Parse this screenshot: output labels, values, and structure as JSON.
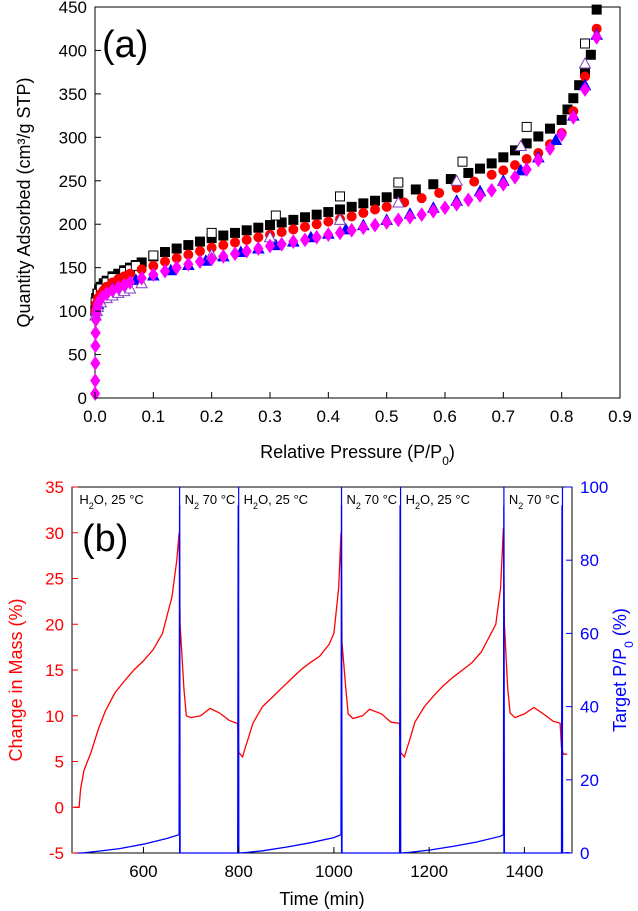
{
  "chart_data": [
    {
      "panel_label": "(a)",
      "type": "scatter",
      "xlabel": "Relative Pressure (P/P0)",
      "xlabel_parts": {
        "main": "Relative Pressure (P/P",
        "sub": "0",
        "end": ")"
      },
      "ylabel": "Quantity Adsorbed (cm³/g STP)",
      "xlim": [
        0.0,
        0.9
      ],
      "ylim": [
        0,
        450
      ],
      "xticks": [
        "0.0",
        "0.1",
        "0.2",
        "0.3",
        "0.4",
        "0.5",
        "0.6",
        "0.7",
        "0.8",
        "0.9"
      ],
      "yticks": [
        "0",
        "50",
        "100",
        "150",
        "200",
        "250",
        "300",
        "350",
        "400",
        "450"
      ],
      "grid": false,
      "series": [
        {
          "marker": "square-filled",
          "color": "#000000",
          "x": [
            0.0005,
            0.002,
            0.004,
            0.007,
            0.01,
            0.015,
            0.02,
            0.03,
            0.04,
            0.05,
            0.06,
            0.07,
            0.08,
            0.1,
            0.12,
            0.14,
            0.16,
            0.18,
            0.2,
            0.22,
            0.24,
            0.26,
            0.28,
            0.3,
            0.32,
            0.34,
            0.36,
            0.38,
            0.4,
            0.42,
            0.44,
            0.46,
            0.48,
            0.5,
            0.52,
            0.55,
            0.58,
            0.61,
            0.64,
            0.66,
            0.68,
            0.7,
            0.72,
            0.74,
            0.76,
            0.78,
            0.8,
            0.81,
            0.82,
            0.83,
            0.84,
            0.85,
            0.86
          ],
          "y": [
            100,
            115,
            120,
            125,
            128,
            132,
            135,
            140,
            143,
            147,
            150,
            153,
            156,
            163,
            168,
            172,
            176,
            180,
            184,
            187,
            190,
            193,
            196,
            199,
            202,
            205,
            208,
            211,
            214,
            217,
            220,
            224,
            227,
            231,
            235,
            240,
            246,
            252,
            259,
            264,
            270,
            277,
            285,
            293,
            301,
            310,
            320,
            332,
            345,
            360,
            375,
            395,
            447
          ]
        },
        {
          "marker": "square-open",
          "color": "#000000",
          "x": [
            0.001,
            0.005,
            0.01,
            0.02,
            0.03,
            0.05,
            0.06,
            0.07,
            0.1,
            0.2,
            0.31,
            0.42,
            0.52,
            0.63,
            0.74,
            0.84
          ],
          "y": [
            110,
            120,
            126,
            133,
            138,
            145,
            148,
            152,
            164,
            190,
            210,
            232,
            248,
            272,
            312,
            408
          ]
        },
        {
          "marker": "circle-filled",
          "color": "#ff0000",
          "x": [
            0.0005,
            0.002,
            0.005,
            0.01,
            0.015,
            0.02,
            0.03,
            0.04,
            0.05,
            0.06,
            0.08,
            0.1,
            0.12,
            0.14,
            0.16,
            0.18,
            0.2,
            0.22,
            0.24,
            0.26,
            0.28,
            0.3,
            0.32,
            0.34,
            0.36,
            0.38,
            0.4,
            0.42,
            0.44,
            0.46,
            0.48,
            0.5,
            0.53,
            0.56,
            0.59,
            0.62,
            0.65,
            0.68,
            0.7,
            0.72,
            0.74,
            0.76,
            0.78,
            0.8,
            0.82,
            0.84,
            0.86
          ],
          "y": [
            100,
            108,
            115,
            120,
            124,
            128,
            133,
            137,
            140,
            143,
            148,
            152,
            157,
            161,
            165,
            169,
            173,
            176,
            179,
            182,
            185,
            188,
            191,
            194,
            197,
            200,
            203,
            206,
            209,
            213,
            217,
            220,
            225,
            230,
            236,
            242,
            249,
            257,
            262,
            268,
            275,
            282,
            292,
            305,
            330,
            370,
            425
          ]
        },
        {
          "marker": "triangle-filled",
          "color": "#0000ff",
          "x": [
            0.001,
            0.005,
            0.01,
            0.02,
            0.03,
            0.05,
            0.07,
            0.1,
            0.13,
            0.16,
            0.19,
            0.22,
            0.25,
            0.28,
            0.31,
            0.34,
            0.37,
            0.4,
            0.43,
            0.46,
            0.5,
            0.54,
            0.58,
            0.62,
            0.66,
            0.7,
            0.73,
            0.76,
            0.79,
            0.82,
            0.84,
            0.86
          ],
          "y": [
            95,
            108,
            115,
            121,
            126,
            131,
            136,
            141,
            147,
            153,
            158,
            163,
            168,
            172,
            176,
            180,
            185,
            189,
            194,
            199,
            205,
            212,
            219,
            227,
            238,
            250,
            262,
            277,
            297,
            325,
            360,
            418
          ]
        },
        {
          "marker": "triangle-open",
          "color": "#8040c0",
          "x": [
            0.001,
            0.003,
            0.005,
            0.01,
            0.02,
            0.03,
            0.04,
            0.05,
            0.06,
            0.08,
            0.2,
            0.3,
            0.42,
            0.52,
            0.62,
            0.73,
            0.84
          ],
          "y": [
            95,
            100,
            105,
            110,
            115,
            118,
            121,
            123,
            126,
            132,
            165,
            185,
            205,
            225,
            250,
            290,
            385
          ]
        },
        {
          "marker": "diamond-filled",
          "color": "#ff00ff",
          "x": [
            0.0002,
            0.0004,
            0.0006,
            0.0008,
            0.001,
            0.0015,
            0.002,
            0.003,
            0.005,
            0.008,
            0.012,
            0.02,
            0.03,
            0.04,
            0.05,
            0.06,
            0.08,
            0.1,
            0.12,
            0.14,
            0.16,
            0.18,
            0.2,
            0.22,
            0.24,
            0.26,
            0.28,
            0.3,
            0.32,
            0.34,
            0.36,
            0.38,
            0.4,
            0.42,
            0.44,
            0.46,
            0.48,
            0.5,
            0.52,
            0.54,
            0.56,
            0.58,
            0.6,
            0.62,
            0.64,
            0.66,
            0.68,
            0.7,
            0.72,
            0.74,
            0.76,
            0.78,
            0.8,
            0.82,
            0.84,
            0.86
          ],
          "y": [
            5,
            20,
            40,
            60,
            75,
            90,
            97,
            103,
            108,
            112,
            116,
            120,
            124,
            127,
            130,
            133,
            138,
            142,
            146,
            150,
            154,
            157,
            160,
            163,
            166,
            169,
            172,
            175,
            177,
            180,
            182,
            185,
            188,
            190,
            193,
            196,
            199,
            202,
            205,
            208,
            211,
            215,
            219,
            223,
            228,
            233,
            239,
            246,
            254,
            263,
            274,
            287,
            303,
            323,
            355,
            415
          ]
        }
      ]
    },
    {
      "panel_label": "(b)",
      "type": "line",
      "xlabel": "Time (min)",
      "ylabel_left": "Change in Mass (%)",
      "ylabel_right": "Target P/P0 (%)",
      "ylabel_right_parts": {
        "main": "Target P/P",
        "sub": "0",
        "end": " (%)"
      },
      "xlim": [
        450,
        1500
      ],
      "ylim_left": [
        -5,
        35
      ],
      "ylim_right": [
        0,
        100
      ],
      "xticks": [
        "600",
        "800",
        "1000",
        "1200",
        "1400"
      ],
      "yticks_left": [
        "-5",
        "0",
        "5",
        "10",
        "15",
        "20",
        "25",
        "30",
        "35"
      ],
      "yticks_right": [
        "0",
        "20",
        "40",
        "60",
        "80",
        "100"
      ],
      "left_axis_color": "#ff0000",
      "right_axis_color": "#0000ff",
      "annotations": [
        {
          "parts": [
            "H",
            "2",
            "O, 25 °C"
          ],
          "x": 455
        },
        {
          "parts": [
            "N",
            "2",
            " 70 °C"
          ],
          "x": 676
        },
        {
          "parts": [
            "H",
            "2",
            "O, 25 °C"
          ],
          "x": 800
        },
        {
          "parts": [
            "N",
            "2",
            " 70 °C"
          ],
          "x": 1016
        },
        {
          "parts": [
            "H",
            "2",
            "O, 25 °C"
          ],
          "x": 1140
        },
        {
          "parts": [
            "N",
            "2",
            " 70 °C"
          ],
          "x": 1357
        }
      ],
      "boundaries": [
        676,
        800,
        1016,
        1140,
        1357,
        1480
      ],
      "series": [
        {
          "axis": "left",
          "color": "#ff0000",
          "x": [
            455,
            465,
            468,
            475,
            490,
            505,
            520,
            540,
            560,
            580,
            600,
            620,
            640,
            650,
            660,
            670,
            675,
            677,
            685,
            690,
            700,
            720,
            740,
            760,
            780,
            795,
            798,
            800,
            808,
            812,
            820,
            830,
            850,
            870,
            890,
            910,
            930,
            950,
            970,
            990,
            1000,
            1010,
            1015,
            1017,
            1025,
            1030,
            1040,
            1060,
            1075,
            1100,
            1120,
            1135,
            1138,
            1140,
            1148,
            1152,
            1160,
            1170,
            1190,
            1210,
            1230,
            1250,
            1270,
            1290,
            1310,
            1320,
            1340,
            1350,
            1356,
            1358,
            1365,
            1370,
            1380,
            1400,
            1420,
            1440,
            1460,
            1475,
            1478,
            1482,
            1490
          ],
          "y": [
            0,
            0,
            2,
            4,
            6,
            8.5,
            10.5,
            12.5,
            13.8,
            15,
            16,
            17.2,
            19,
            21,
            23,
            27,
            30,
            20,
            13,
            10,
            9.8,
            10,
            10.8,
            10.3,
            9.5,
            9.2,
            9.1,
            6,
            5.5,
            6.2,
            7.5,
            9.2,
            11,
            12,
            13,
            14,
            15,
            15.8,
            16.5,
            17.8,
            19,
            24,
            30,
            18,
            13,
            10.2,
            9.7,
            10,
            10.7,
            10.2,
            9.3,
            9.2,
            9.1,
            6,
            5.5,
            6.2,
            7.5,
            9.3,
            11,
            12.2,
            13.3,
            14.2,
            15,
            15.8,
            17,
            18,
            20,
            24,
            30.5,
            20,
            13,
            10.3,
            9.8,
            10.2,
            10.9,
            10.2,
            9.4,
            9.2,
            6.5,
            5.8,
            5.8
          ]
        },
        {
          "axis": "right",
          "color": "#0000ff",
          "x": [
            455,
            470,
            500,
            550,
            600,
            650,
            675,
            676,
            677,
            798,
            799,
            800,
            801,
            820,
            850,
            900,
            950,
            1000,
            1015,
            1016,
            1017,
            1138,
            1139,
            1140,
            1141,
            1160,
            1200,
            1250,
            1300,
            1350,
            1356,
            1357,
            1358,
            1478,
            1479,
            1480,
            1481,
            1490,
            1495
          ],
          "y": [
            0,
            0,
            0.4,
            1.2,
            2.4,
            4.0,
            5.0,
            95,
            0,
            0,
            95,
            0,
            0,
            0.2,
            0.6,
            1.6,
            2.8,
            4.2,
            5.0,
            95,
            0,
            0,
            95,
            0,
            0,
            0.2,
            0.8,
            1.8,
            3.0,
            4.6,
            5.0,
            95,
            0,
            0,
            95,
            0,
            0,
            0.1,
            0.1
          ]
        }
      ]
    }
  ]
}
